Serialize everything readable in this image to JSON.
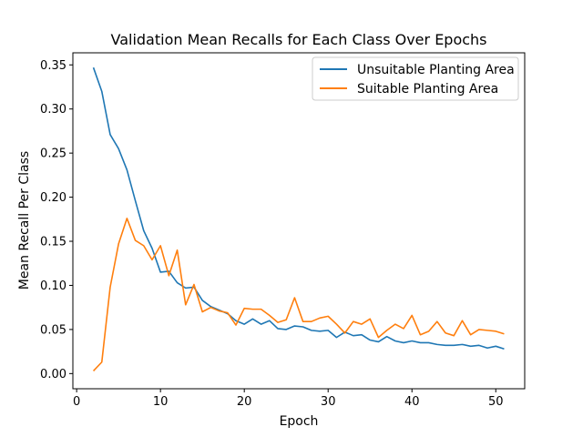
{
  "chart_data": {
    "type": "line",
    "title": "Validation Mean Recalls for Each Class Over Epochs",
    "xlabel": "Epoch",
    "ylabel": "Mean Recall Per Class",
    "xlim": [
      -0.45,
      53.45
    ],
    "ylim": [
      -0.0172,
      0.3637
    ],
    "xticks": [
      0,
      10,
      20,
      30,
      40,
      50
    ],
    "yticks": [
      0.0,
      0.05,
      0.1,
      0.15,
      0.2,
      0.25,
      0.3,
      0.35
    ],
    "xtick_labels": [
      "0",
      "10",
      "20",
      "30",
      "40",
      "50"
    ],
    "ytick_labels": [
      "0.00",
      "0.05",
      "0.10",
      "0.15",
      "0.20",
      "0.25",
      "0.30",
      "0.35"
    ],
    "grid": false,
    "legend_position": "top-right",
    "x": [
      2,
      3,
      4,
      5,
      6,
      7,
      8,
      9,
      10,
      11,
      12,
      13,
      14,
      15,
      16,
      17,
      18,
      19,
      20,
      21,
      22,
      23,
      24,
      25,
      26,
      27,
      28,
      29,
      30,
      31,
      32,
      33,
      34,
      35,
      36,
      37,
      38,
      39,
      40,
      41,
      42,
      43,
      44,
      45,
      46,
      47,
      48,
      49,
      50,
      51
    ],
    "series": [
      {
        "name": "Unsuitable Planting Area",
        "color": "#1f77b4",
        "values": [
          0.347,
          0.32,
          0.271,
          0.255,
          0.231,
          0.196,
          0.162,
          0.142,
          0.115,
          0.116,
          0.103,
          0.097,
          0.098,
          0.083,
          0.076,
          0.072,
          0.068,
          0.06,
          0.056,
          0.062,
          0.056,
          0.06,
          0.051,
          0.05,
          0.054,
          0.053,
          0.049,
          0.048,
          0.049,
          0.041,
          0.047,
          0.043,
          0.044,
          0.038,
          0.036,
          0.042,
          0.037,
          0.035,
          0.037,
          0.035,
          0.035,
          0.033,
          0.032,
          0.032,
          0.033,
          0.031,
          0.032,
          0.029,
          0.031,
          0.028
        ]
      },
      {
        "name": "Suitable Planting Area",
        "color": "#ff7f0e",
        "values": [
          0.003,
          0.013,
          0.098,
          0.147,
          0.176,
          0.151,
          0.145,
          0.129,
          0.145,
          0.111,
          0.14,
          0.078,
          0.101,
          0.07,
          0.075,
          0.071,
          0.069,
          0.055,
          0.074,
          0.073,
          0.073,
          0.066,
          0.058,
          0.061,
          0.086,
          0.059,
          0.059,
          0.063,
          0.065,
          0.056,
          0.046,
          0.059,
          0.056,
          0.062,
          0.041,
          0.049,
          0.056,
          0.051,
          0.066,
          0.044,
          0.048,
          0.059,
          0.046,
          0.043,
          0.06,
          0.044,
          0.05,
          0.049,
          0.048,
          0.045
        ]
      }
    ]
  }
}
